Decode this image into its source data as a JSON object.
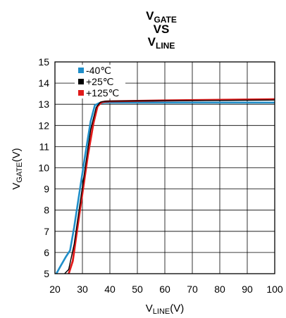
{
  "chart_data": {
    "type": "line",
    "title": {
      "line1_main": "V",
      "line1_sub": "GATE",
      "line2": "VS",
      "line3_main": "V",
      "line3_sub": "LINE"
    },
    "xlabel": {
      "main": "V",
      "sub": "LINE",
      "unit": "(V)"
    },
    "ylabel": {
      "main": "V",
      "sub": "GATE",
      "unit": "(V)"
    },
    "xlim": [
      20,
      100
    ],
    "ylim": [
      5,
      15
    ],
    "xticks": [
      20,
      30,
      40,
      50,
      60,
      70,
      80,
      90,
      100
    ],
    "yticks": [
      5,
      6,
      7,
      8,
      9,
      10,
      11,
      12,
      13,
      14,
      15
    ],
    "grid": true,
    "legend_position": "top-left",
    "series": [
      {
        "name": "-40℃",
        "color": "#1f8ec9",
        "x": [
          20.5,
          22,
          24,
          25.5,
          27,
          29,
          31,
          33,
          34.5,
          36,
          38,
          40,
          60,
          80,
          100
        ],
        "y": [
          5.0,
          5.35,
          5.8,
          6.1,
          7.2,
          8.9,
          10.6,
          12.2,
          12.95,
          13.05,
          13.08,
          13.08,
          13.08,
          13.08,
          13.08
        ]
      },
      {
        "name": "+25℃",
        "color": "#000000",
        "x": [
          23.5,
          25,
          27,
          29,
          31,
          33,
          35,
          36.5,
          38,
          40,
          60,
          80,
          100
        ],
        "y": [
          5.0,
          5.2,
          6.4,
          8.2,
          10.0,
          11.8,
          12.85,
          13.1,
          13.14,
          13.15,
          13.17,
          13.18,
          13.2
        ],
        "draw_order": 3
      },
      {
        "name": "+125℃",
        "color": "#e01a1a",
        "x": [
          25,
          26.5,
          28,
          30,
          32,
          34,
          35.5,
          37,
          38.5,
          40,
          60,
          80,
          100
        ],
        "y": [
          5.0,
          5.6,
          7.0,
          8.8,
          10.6,
          12.1,
          12.9,
          13.1,
          13.13,
          13.14,
          13.18,
          13.21,
          13.24
        ]
      }
    ]
  }
}
